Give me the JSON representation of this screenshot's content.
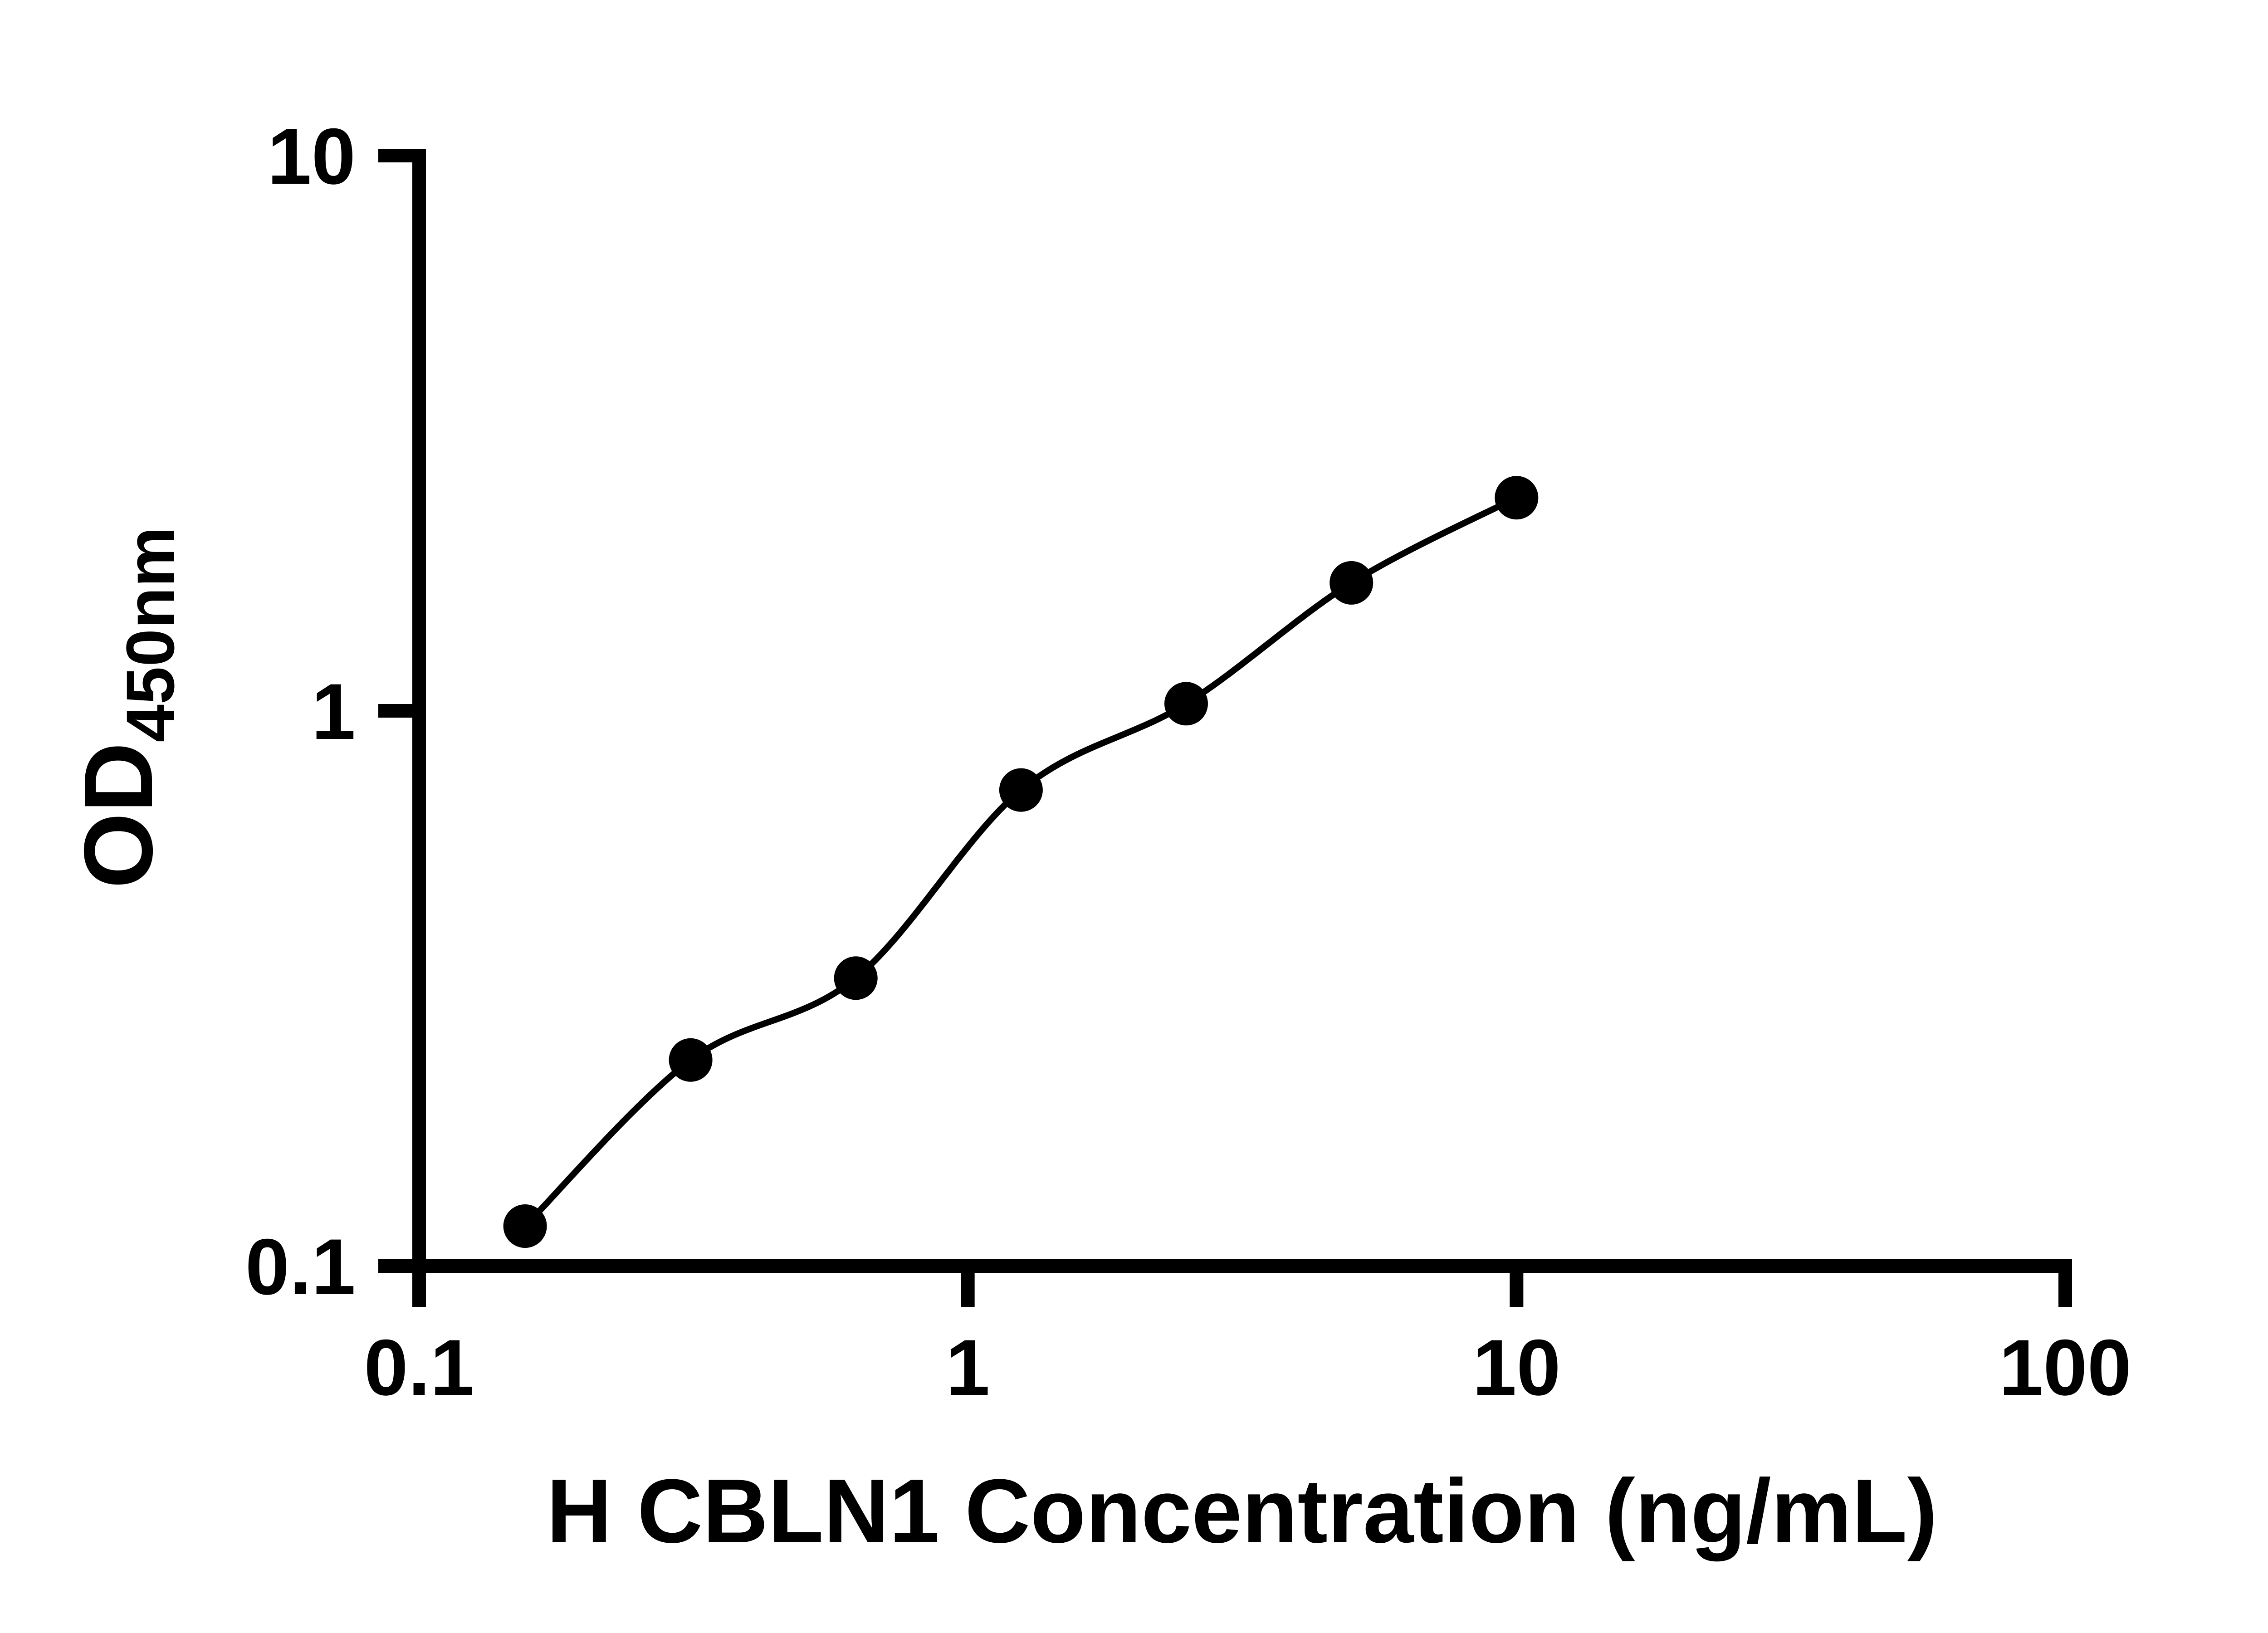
{
  "chart_data": {
    "type": "scatter",
    "title": "",
    "xlabel": "H CBLN1 Concentration (ng/mL)",
    "ylabel_main": "OD",
    "ylabel_subscript": "450nm",
    "x_scale": "log10",
    "y_scale": "log10",
    "xlim": [
      0.1,
      100
    ],
    "ylim": [
      0.1,
      10
    ],
    "x_ticks": [
      "0.1",
      "1",
      "10",
      "100"
    ],
    "y_ticks": [
      "0.1",
      "1",
      "10"
    ],
    "grid": false,
    "legend": false,
    "series": [
      {
        "x": [
          0.156,
          0.3125,
          0.625,
          1.25,
          2.5,
          5,
          10
        ],
        "y": [
          0.118,
          0.235,
          0.33,
          0.72,
          1.03,
          1.7,
          2.42
        ],
        "marker": "filled-circle",
        "fit": "smooth-curve"
      }
    ],
    "colors": {
      "axis": "#000000",
      "marker": "#000000",
      "curve": "#000000",
      "background": "#ffffff"
    }
  }
}
